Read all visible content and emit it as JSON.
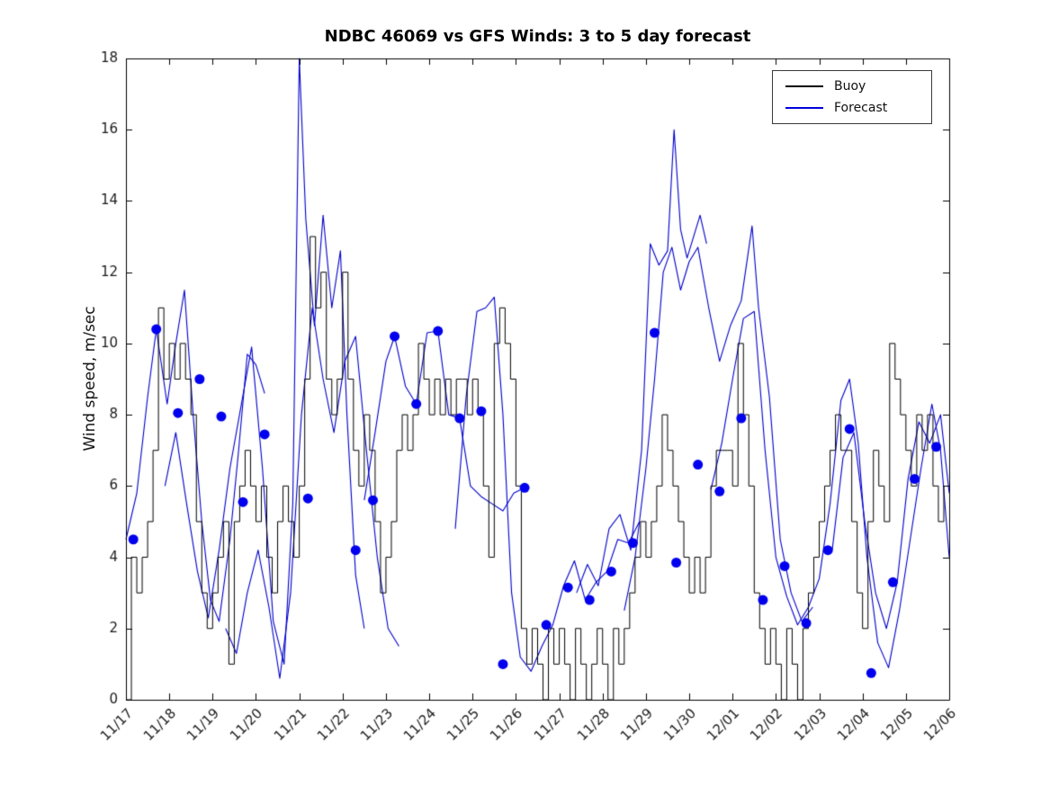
{
  "title": "NDBC 46069 vs GFS Winds: 3 to 5 day forecast",
  "ylabel": "Wind speed, m/sec",
  "legend": {
    "items": [
      {
        "label": "Buoy",
        "color": "#000000"
      },
      {
        "label": "Forecast",
        "color": "#0000dd"
      }
    ]
  },
  "chart_data": {
    "type": "line",
    "title": "NDBC 46069 vs GFS Winds: 3 to 5 day forecast",
    "xlabel": "",
    "ylabel": "Wind speed, m/sec",
    "xlim": [
      0,
      19
    ],
    "ylim": [
      0,
      18
    ],
    "yticks": [
      0,
      2,
      4,
      6,
      8,
      10,
      12,
      14,
      16,
      18
    ],
    "xtick_labels": [
      "11/17",
      "11/18",
      "11/19",
      "11/20",
      "11/21",
      "11/22",
      "11/23",
      "11/24",
      "11/25",
      "11/26",
      "11/27",
      "11/28",
      "11/29",
      "11/30",
      "12/01",
      "12/02",
      "12/03",
      "12/04",
      "12/05",
      "12/06"
    ],
    "legend_position": "top-right",
    "grid": false,
    "colors": {
      "buoy": "#000000",
      "forecast": "#0000cc",
      "marker": "#0000ee",
      "axis": "#000000",
      "tick_text": "#1a1a1a"
    },
    "buoy": {
      "name": "Buoy",
      "style": "steps",
      "start_day": 0,
      "step_days": 0.125,
      "units": "m/sec",
      "values": [
        0,
        4,
        3,
        4,
        5,
        7,
        11,
        9,
        10,
        9,
        10,
        9,
        8,
        5,
        3,
        2,
        3,
        4,
        5,
        1,
        5,
        6,
        7,
        6,
        5,
        6,
        4,
        3,
        5,
        6,
        5,
        4,
        6,
        9,
        13,
        11,
        12,
        9,
        8,
        9,
        12,
        9,
        7,
        6,
        8,
        7,
        5,
        3,
        4,
        5,
        7,
        8,
        7,
        8,
        10,
        9,
        8,
        9,
        8,
        9,
        8,
        9,
        9,
        8,
        9,
        8,
        6,
        4,
        10,
        11,
        10,
        9,
        6,
        2,
        1,
        2,
        1,
        0,
        2,
        1,
        2,
        1,
        0,
        2,
        1,
        0,
        1,
        2,
        1,
        0,
        2,
        1,
        2,
        3,
        4,
        5,
        4,
        5,
        6,
        8,
        7,
        6,
        5,
        4,
        3,
        4,
        3,
        4,
        6,
        7,
        7,
        7,
        6,
        10,
        8,
        6,
        3,
        2,
        1,
        2,
        1,
        0,
        2,
        1,
        0,
        2,
        3,
        4,
        5,
        6,
        7,
        8,
        7,
        7,
        5,
        3,
        2,
        5,
        7,
        6,
        5,
        10,
        9,
        8,
        7,
        6,
        8,
        7,
        8,
        6,
        5,
        6
      ]
    },
    "forecast_lines": [
      [
        [
          0,
          4.5
        ],
        [
          0.25,
          5.8
        ],
        [
          0.5,
          8.5
        ],
        [
          0.7,
          10.4
        ],
        [
          0.95,
          8.3
        ],
        [
          1.15,
          10.0
        ],
        [
          1.35,
          11.5
        ],
        [
          1.55,
          8.0
        ],
        [
          1.75,
          5.0
        ],
        [
          1.95,
          2.8
        ],
        [
          2.15,
          2.2
        ],
        [
          2.4,
          4.5
        ],
        [
          2.6,
          7.0
        ],
        [
          2.8,
          9.7
        ],
        [
          3.0,
          9.4
        ],
        [
          3.2,
          8.6
        ]
      ],
      [
        [
          0.9,
          6.0
        ],
        [
          1.15,
          7.5
        ],
        [
          1.4,
          5.5
        ],
        [
          1.65,
          3.6
        ],
        [
          1.9,
          2.3
        ],
        [
          2.15,
          4.2
        ],
        [
          2.4,
          6.5
        ],
        [
          2.65,
          8.2
        ],
        [
          2.9,
          9.9
        ],
        [
          3.15,
          6.5
        ],
        [
          3.4,
          2.2
        ],
        [
          3.65,
          1.0
        ],
        [
          3.85,
          5.5
        ],
        [
          4.0,
          18.0
        ],
        [
          4.15,
          13.5
        ],
        [
          4.35,
          10.5
        ],
        [
          4.55,
          13.6
        ],
        [
          4.75,
          11.0
        ],
        [
          4.95,
          12.6
        ],
        [
          5.1,
          8.0
        ],
        [
          5.3,
          3.5
        ],
        [
          5.5,
          2.0
        ]
      ],
      [
        [
          2.3,
          2.0
        ],
        [
          2.55,
          1.3
        ],
        [
          2.8,
          3.0
        ],
        [
          3.05,
          4.2
        ],
        [
          3.3,
          2.6
        ],
        [
          3.55,
          0.6
        ],
        [
          3.8,
          3.0
        ],
        [
          4.05,
          8.0
        ],
        [
          4.3,
          11.0
        ],
        [
          4.55,
          9.0
        ],
        [
          4.8,
          7.5
        ],
        [
          5.05,
          9.5
        ],
        [
          5.3,
          10.2
        ],
        [
          5.55,
          7.0
        ],
        [
          5.8,
          4.0
        ],
        [
          6.05,
          2.0
        ],
        [
          6.3,
          1.5
        ]
      ],
      [
        [
          5.5,
          5.6
        ],
        [
          5.75,
          7.5
        ],
        [
          6.0,
          9.5
        ],
        [
          6.2,
          10.2
        ],
        [
          6.45,
          8.8
        ],
        [
          6.7,
          8.3
        ],
        [
          6.95,
          10.3
        ],
        [
          7.2,
          10.35
        ],
        [
          7.45,
          8.0
        ],
        [
          7.7,
          7.9
        ],
        [
          7.95,
          6.0
        ],
        [
          8.2,
          5.7
        ],
        [
          8.45,
          5.5
        ],
        [
          8.7,
          5.3
        ],
        [
          8.95,
          5.8
        ],
        [
          9.2,
          5.95
        ]
      ],
      [
        [
          7.6,
          4.8
        ],
        [
          7.85,
          8.5
        ],
        [
          8.1,
          10.9
        ],
        [
          8.3,
          11.0
        ],
        [
          8.5,
          11.3
        ],
        [
          8.7,
          8.0
        ],
        [
          8.9,
          3.0
        ],
        [
          9.1,
          1.2
        ],
        [
          9.35,
          0.8
        ],
        [
          9.6,
          1.5
        ],
        [
          9.85,
          2.1
        ],
        [
          10.1,
          3.2
        ],
        [
          10.35,
          3.9
        ],
        [
          10.6,
          2.8
        ],
        [
          10.85,
          3.3
        ],
        [
          11.1,
          3.6
        ],
        [
          11.35,
          4.5
        ],
        [
          11.6,
          4.4
        ],
        [
          11.85,
          5.0
        ]
      ],
      [
        [
          10.4,
          3.0
        ],
        [
          10.65,
          3.8
        ],
        [
          10.9,
          3.2
        ],
        [
          11.15,
          4.8
        ],
        [
          11.4,
          5.2
        ],
        [
          11.65,
          4.2
        ],
        [
          11.9,
          7.0
        ],
        [
          12.1,
          12.8
        ],
        [
          12.3,
          12.2
        ],
        [
          12.5,
          12.6
        ],
        [
          12.65,
          16.0
        ],
        [
          12.8,
          13.2
        ],
        [
          12.95,
          12.4
        ],
        [
          13.1,
          13.0
        ],
        [
          13.25,
          13.6
        ],
        [
          13.4,
          12.8
        ]
      ],
      [
        [
          11.5,
          2.5
        ],
        [
          11.75,
          4.0
        ],
        [
          12.0,
          6.5
        ],
        [
          12.2,
          9.0
        ],
        [
          12.4,
          12.0
        ],
        [
          12.6,
          12.7
        ],
        [
          12.8,
          11.5
        ],
        [
          13.0,
          12.3
        ],
        [
          13.2,
          12.7
        ],
        [
          13.45,
          11.0
        ],
        [
          13.7,
          9.5
        ],
        [
          13.95,
          10.5
        ],
        [
          14.2,
          11.2
        ],
        [
          14.45,
          13.3
        ],
        [
          14.6,
          11.0
        ],
        [
          14.85,
          8.5
        ],
        [
          15.1,
          4.5
        ],
        [
          15.35,
          3.0
        ],
        [
          15.6,
          2.2
        ],
        [
          15.85,
          2.6
        ]
      ],
      [
        [
          13.5,
          5.9
        ],
        [
          13.75,
          7.2
        ],
        [
          14.0,
          9.0
        ],
        [
          14.25,
          10.7
        ],
        [
          14.5,
          10.9
        ],
        [
          14.75,
          7.0
        ],
        [
          15.0,
          4.0
        ],
        [
          15.25,
          2.9
        ],
        [
          15.5,
          2.1
        ],
        [
          15.75,
          2.6
        ],
        [
          16.0,
          3.4
        ],
        [
          16.25,
          5.5
        ],
        [
          16.5,
          8.4
        ],
        [
          16.7,
          9.0
        ],
        [
          16.9,
          7.2
        ],
        [
          17.1,
          4.0
        ],
        [
          17.35,
          1.6
        ],
        [
          17.6,
          0.9
        ],
        [
          17.85,
          2.5
        ],
        [
          18.1,
          4.5
        ],
        [
          18.35,
          6.5
        ],
        [
          18.6,
          8.3
        ],
        [
          18.8,
          7.0
        ],
        [
          19.0,
          4.0
        ]
      ],
      [
        [
          16.3,
          4.2
        ],
        [
          16.55,
          6.8
        ],
        [
          16.8,
          7.5
        ],
        [
          17.05,
          5.0
        ],
        [
          17.3,
          3.0
        ],
        [
          17.55,
          2.0
        ],
        [
          17.8,
          3.3
        ],
        [
          18.05,
          6.2
        ],
        [
          18.3,
          7.8
        ],
        [
          18.55,
          7.2
        ],
        [
          18.8,
          8.0
        ],
        [
          19.0,
          5.8
        ]
      ]
    ],
    "markers": [
      [
        0.17,
        4.5
      ],
      [
        0.7,
        10.4
      ],
      [
        1.2,
        8.05
      ],
      [
        1.7,
        9.0
      ],
      [
        2.2,
        7.95
      ],
      [
        2.7,
        5.55
      ],
      [
        3.2,
        7.45
      ],
      [
        4.2,
        5.65
      ],
      [
        5.3,
        4.2
      ],
      [
        5.7,
        5.6
      ],
      [
        6.2,
        10.2
      ],
      [
        6.7,
        8.3
      ],
      [
        7.2,
        10.35
      ],
      [
        7.7,
        7.9
      ],
      [
        8.2,
        8.1
      ],
      [
        8.7,
        1.0
      ],
      [
        9.2,
        5.95
      ],
      [
        9.7,
        2.1
      ],
      [
        10.2,
        3.15
      ],
      [
        10.7,
        2.8
      ],
      [
        11.2,
        3.6
      ],
      [
        11.7,
        4.4
      ],
      [
        12.2,
        10.3
      ],
      [
        12.7,
        3.85
      ],
      [
        13.2,
        6.6
      ],
      [
        13.7,
        5.85
      ],
      [
        14.2,
        7.9
      ],
      [
        14.7,
        2.8
      ],
      [
        15.2,
        3.75
      ],
      [
        15.7,
        2.15
      ],
      [
        16.2,
        4.2
      ],
      [
        16.7,
        7.6
      ],
      [
        17.2,
        0.75
      ],
      [
        17.7,
        3.3
      ],
      [
        18.2,
        6.2
      ],
      [
        18.7,
        7.1
      ]
    ]
  }
}
